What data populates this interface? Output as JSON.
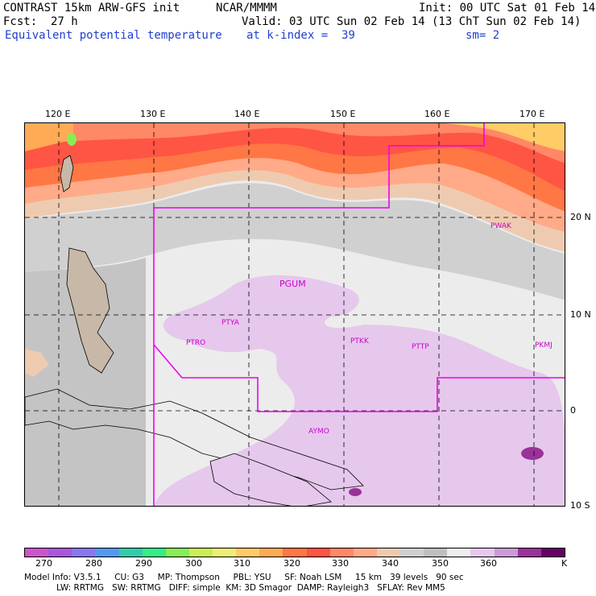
{
  "header": {
    "model": "CONTRAST 15km ARW-GFS init",
    "org": "NCAR/MMMM",
    "init": "Init: 00 UTC Sat 01 Feb 14",
    "fcst_label": "Fcst:",
    "fcst_value": "27 h",
    "valid": "Valid: 03 UTC Sun 02 Feb 14 (13 ChT Sun 02 Feb 14)",
    "field": "Equivalent potential temperature",
    "level": "at k-index =  39",
    "smoothing": "sm= 2"
  },
  "map": {
    "lon_labels": [
      "120 E",
      "130 E",
      "140 E",
      "150 E",
      "160 E",
      "170 E"
    ],
    "lat_labels": [
      "20 N",
      "10 N",
      "0",
      "10 S"
    ],
    "stations": [
      "PGUM",
      "PTYA",
      "PTRO",
      "PTKK",
      "PTTP",
      "PKMJ",
      "PWAK",
      "AYMO"
    ]
  },
  "colorbar": {
    "colors": [
      "#cc55cc",
      "#aa55dd",
      "#8877ee",
      "#5599ee",
      "#33ccaa",
      "#33ee88",
      "#88ee55",
      "#ccee55",
      "#eeee77",
      "#ffcc66",
      "#ffaa55",
      "#ff7744",
      "#ff5544",
      "#ff8866",
      "#ffaa88",
      "#eecbb0",
      "#d0d0d0",
      "#bfbfbf",
      "#eeeeee",
      "#e6c8ec",
      "#cc9ad8",
      "#993399",
      "#660066"
    ],
    "labels": [
      "270",
      "280",
      "290",
      "300",
      "310",
      "320",
      "330",
      "340",
      "350",
      "360",
      "K"
    ]
  },
  "model_info": {
    "line1": [
      "Model Info: V3.5.1",
      "CU: G3",
      "MP: Thompson",
      "PBL: YSU",
      "SF: Noah LSM",
      "15 km",
      "39 levels",
      "90 sec"
    ],
    "line2": [
      "LW: RRTMG",
      "SW: RRTMG",
      "DIFF: simple",
      "KM: 3D Smagor",
      "DAMP: Rayleigh3",
      "SFLAY: Rev MM5"
    ]
  }
}
